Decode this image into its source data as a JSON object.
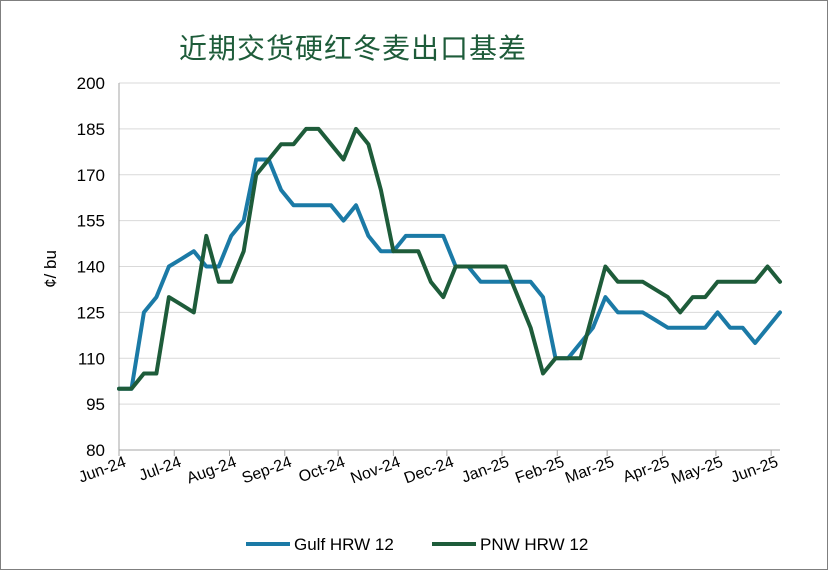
{
  "title": "近期交货硬红冬麦出口基差",
  "chart_data": {
    "type": "line",
    "title": "近期交货硬红冬麦出口基差",
    "ylabel": "¢/ bu",
    "xlabel": "",
    "ylim": [
      80,
      200
    ],
    "yticks": [
      80,
      95,
      110,
      125,
      140,
      155,
      170,
      185,
      200
    ],
    "xlim": [
      0,
      53
    ],
    "categories": [
      "Jun-24",
      "Jul-24",
      "Aug-24",
      "Sep-24",
      "Oct-24",
      "Nov-24",
      "Dec-24",
      "Jan-25",
      "Feb-25",
      "Mar-25",
      "Apr-25",
      "May-25",
      "Jun-25"
    ],
    "category_x": [
      0,
      4.43,
      8.86,
      13.29,
      17.57,
      22,
      26.29,
      30.71,
      35.14,
      39.14,
      43.57,
      47.86,
      52.29
    ],
    "grid": "horizontal",
    "legend_position": "bottom",
    "series": [
      {
        "name": "Gulf HRW 12",
        "color": "#1b7aa6",
        "x": [
          0,
          1,
          2,
          3,
          4,
          5,
          6,
          7,
          8,
          9,
          10,
          11,
          12,
          13,
          14,
          15,
          16,
          17,
          18,
          19,
          20,
          21,
          22,
          23,
          24,
          25,
          26,
          27,
          28,
          29,
          30,
          31,
          32,
          33,
          34,
          35,
          36,
          37,
          38,
          39,
          40,
          41,
          42,
          43,
          44,
          45,
          46,
          47,
          48,
          49,
          50,
          51,
          52,
          53
        ],
        "values": [
          100,
          100,
          125,
          130,
          140,
          142.5,
          145,
          140,
          140,
          150,
          155,
          175,
          175,
          165,
          160,
          160,
          160,
          160,
          155,
          160,
          150,
          145,
          145,
          150,
          150,
          150,
          150,
          140,
          140,
          135,
          135,
          135,
          135,
          135,
          130,
          110,
          110,
          115,
          120,
          130,
          125,
          125,
          125,
          122.5,
          120,
          120,
          120,
          120,
          125,
          120,
          120,
          115,
          120,
          125
        ]
      },
      {
        "name": "PNW HRW 12",
        "color": "#1e5c3a",
        "x": [
          0,
          1,
          2,
          3,
          4,
          5,
          6,
          7,
          8,
          9,
          10,
          11,
          12,
          13,
          14,
          15,
          16,
          17,
          18,
          19,
          20,
          21,
          22,
          23,
          24,
          25,
          26,
          27,
          28,
          29,
          30,
          31,
          32,
          33,
          34,
          35,
          36,
          37,
          38,
          39,
          40,
          41,
          42,
          43,
          44,
          45,
          46,
          47,
          48,
          49,
          50,
          51,
          52,
          53
        ],
        "values": [
          100,
          100,
          105,
          105,
          130,
          127.5,
          125,
          150,
          135,
          135,
          145,
          170,
          175,
          180,
          180,
          185,
          185,
          180,
          175,
          185,
          180,
          165,
          145,
          145,
          145,
          135,
          130,
          140,
          140,
          140,
          140,
          140,
          130,
          120,
          105,
          110,
          110,
          110,
          125,
          140,
          135,
          135,
          135,
          132.5,
          130,
          125,
          130,
          130,
          135,
          135,
          135,
          135,
          140,
          135
        ]
      }
    ]
  }
}
